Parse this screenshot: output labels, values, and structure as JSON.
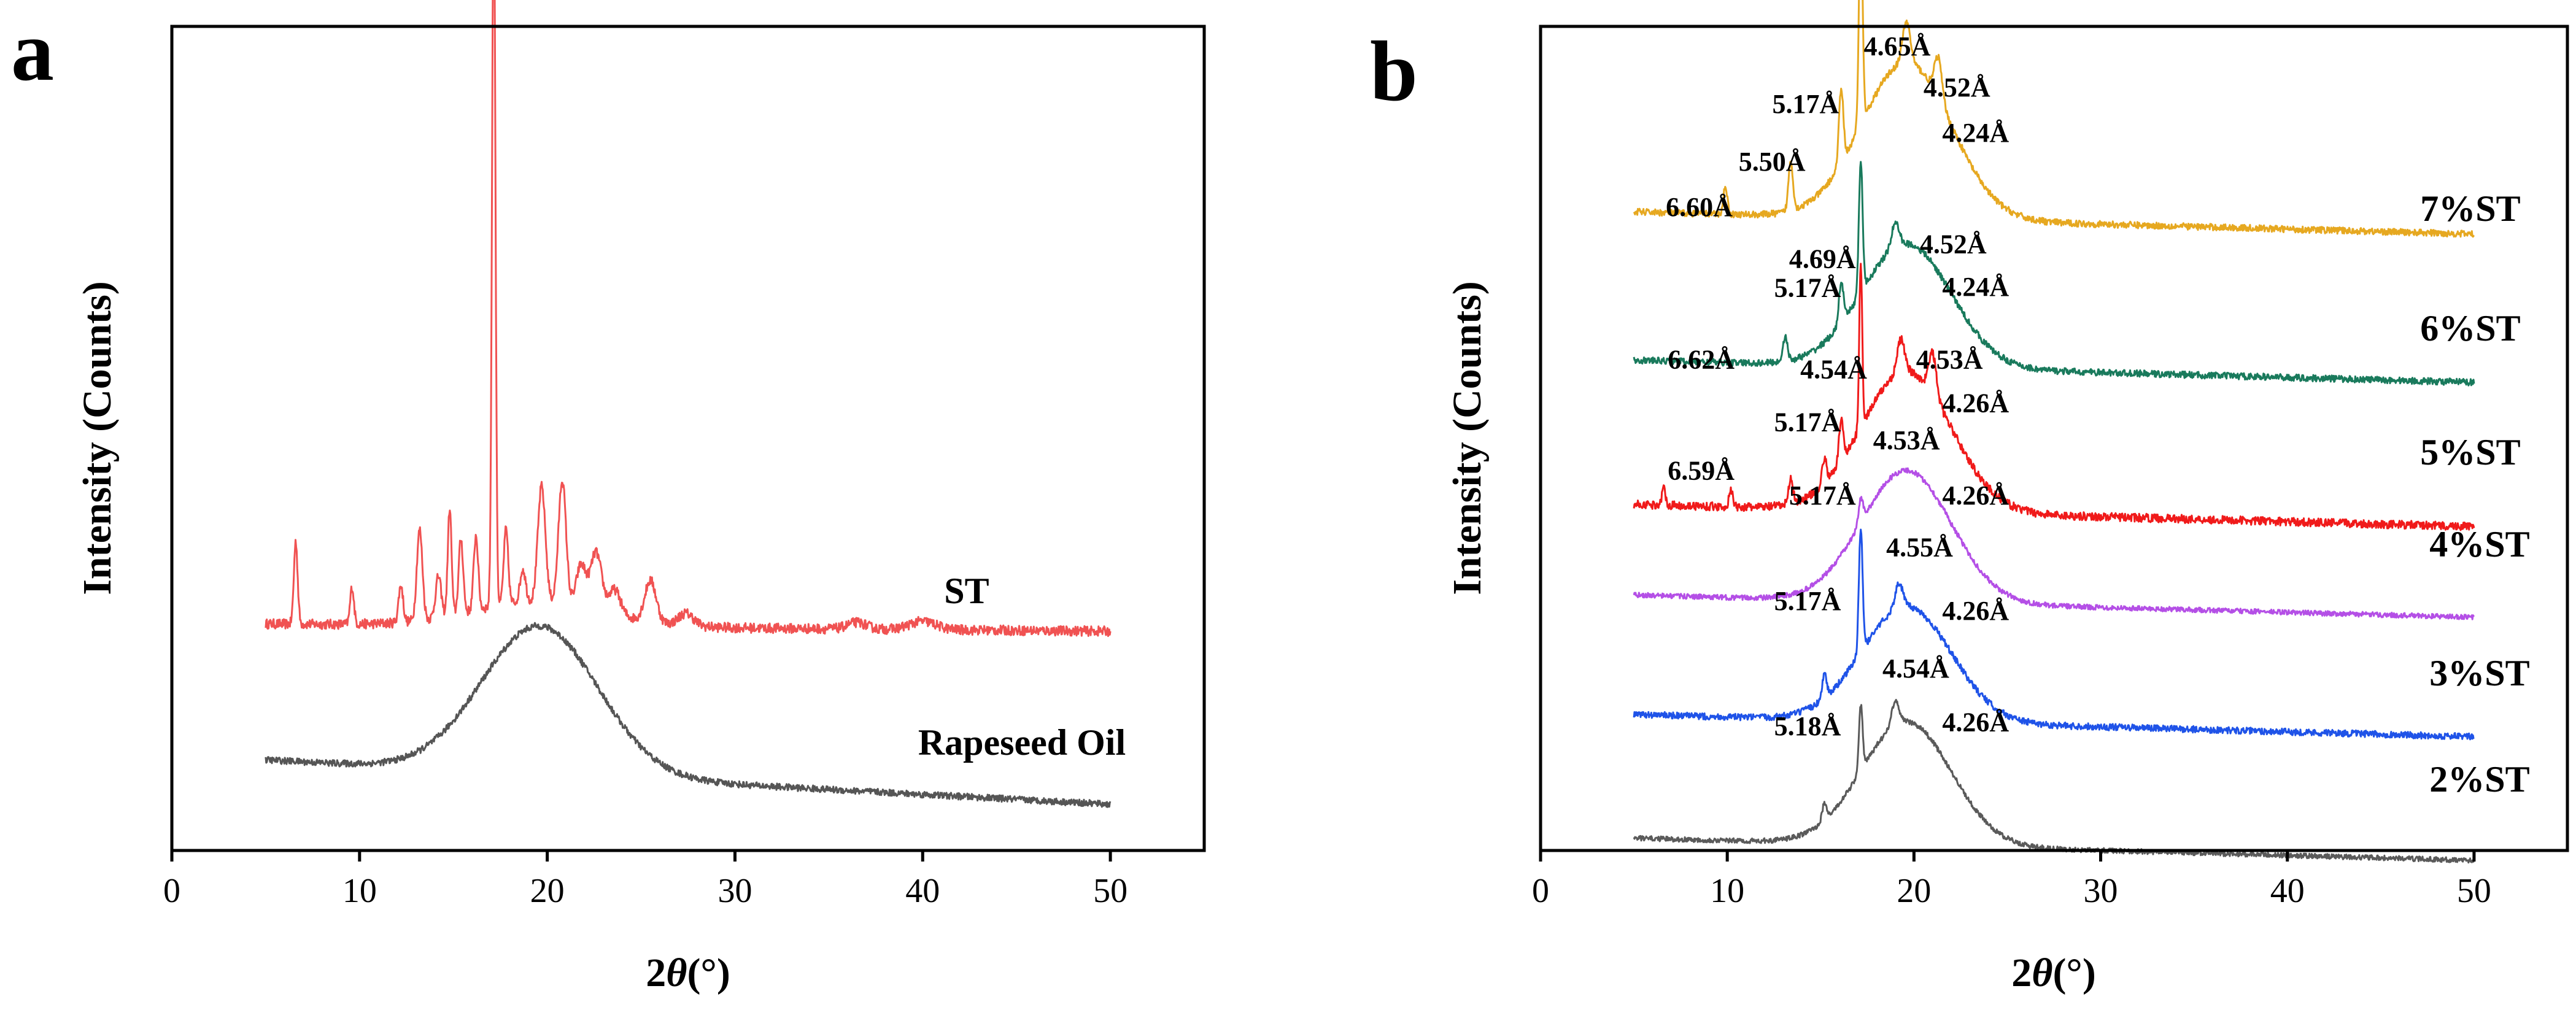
{
  "chart_data": [
    {
      "panel": "a",
      "type": "line",
      "xlabel": "2θ(°)",
      "xlabel_parts": [
        "2",
        "θ",
        "(°)"
      ],
      "ylabel": "Intensity (Counts)",
      "xlim": [
        0,
        55
      ],
      "xticks": [
        0,
        10,
        20,
        30,
        40,
        50
      ],
      "yticks_shown": false,
      "series": [
        {
          "name": "ST",
          "color": "#f05252",
          "offset": 0.27,
          "baseline": [
            0.005,
            -0.0002
          ],
          "noise": 0.006,
          "peaks": [
            [
              6.6,
              0.1,
              0.1
            ],
            [
              9.6,
              0.045,
              0.1
            ],
            [
              12.2,
              0.045,
              0.12
            ],
            [
              13.2,
              0.11,
              0.15
            ],
            [
              14.2,
              0.05,
              0.15
            ],
            [
              14.8,
              0.13,
              0.1
            ],
            [
              15.4,
              0.09,
              0.12
            ],
            [
              16.2,
              0.09,
              0.12
            ],
            [
              17.15,
              0.88,
              0.09
            ],
            [
              17.8,
              0.09,
              0.12
            ],
            [
              18.7,
              0.04,
              0.15
            ],
            [
              19.7,
              0.14,
              0.2
            ],
            [
              20.8,
              0.15,
              0.2
            ],
            [
              21.8,
              0.05,
              0.25
            ],
            [
              22.6,
              0.07,
              0.3
            ],
            [
              23.6,
              0.03,
              0.3
            ],
            [
              25.5,
              0.05,
              0.3
            ],
            [
              27.4,
              0.015,
              0.4
            ],
            [
              36.5,
              0.008,
              0.5
            ],
            [
              40,
              0.01,
              0.7
            ]
          ],
          "humps": [
            [
              19.5,
              0.03,
              3.5
            ]
          ]
        },
        {
          "name": "Rapeseed Oil",
          "color": "#555555",
          "offset": 0.065,
          "baseline": [
            0.045,
            -0.0012
          ],
          "noise": 0.004,
          "peaks": [],
          "humps": [
            [
              19.6,
              0.18,
              3.1
            ]
          ]
        }
      ]
    },
    {
      "panel": "b",
      "type": "line",
      "xlabel": "2θ(°)",
      "xlabel_parts": [
        "2",
        "θ",
        "(°)"
      ],
      "ylabel": "Intensity (Counts)",
      "xlim": [
        0,
        55
      ],
      "xticks": [
        0,
        10,
        20,
        30,
        40,
        50
      ],
      "yticks_shown": false,
      "series": [
        {
          "name": "7%ST",
          "color": "#e6a820",
          "offset": 0.745,
          "baseline": [
            0.03,
            -0.0006
          ],
          "noise": 0.004,
          "peaks": [
            [
              9.9,
              0.035,
              0.1
            ],
            [
              13.4,
              0.06,
              0.12
            ],
            [
              16.1,
              0.09,
              0.12
            ],
            [
              17.15,
              0.25,
              0.1
            ],
            [
              19.6,
              0.05,
              0.2
            ],
            [
              21.3,
              0.05,
              0.2
            ]
          ],
          "humps": [
            [
              19.6,
              0.19,
              2.4
            ]
          ],
          "annotations": [
            {
              "text": "4.65Å",
              "x": 19.1,
              "y": 0.965
            },
            {
              "text": "4.52Å",
              "x": 22.3,
              "y": 0.915
            },
            {
              "text": "5.17Å",
              "x": 14.2,
              "y": 0.895
            },
            {
              "text": "4.24Å",
              "x": 23.3,
              "y": 0.86
            },
            {
              "text": "5.50Å",
              "x": 12.4,
              "y": 0.825
            },
            {
              "text": "6.60Å",
              "x": 8.5,
              "y": 0.77
            }
          ]
        },
        {
          "name": "6%ST",
          "color": "#197a5c",
          "offset": 0.565,
          "baseline": [
            0.03,
            -0.0006
          ],
          "noise": 0.004,
          "peaks": [
            [
              13.1,
              0.03,
              0.12
            ],
            [
              16.1,
              0.05,
              0.12
            ],
            [
              17.15,
              0.16,
              0.1
            ],
            [
              19.0,
              0.03,
              0.2
            ]
          ],
          "humps": [
            [
              19.6,
              0.15,
              2.4
            ]
          ],
          "annotations": [
            {
              "text": "4.52Å",
              "x": 22.1,
              "y": 0.725
            },
            {
              "text": "4.69Å",
              "x": 15.1,
              "y": 0.707
            },
            {
              "text": "5.17Å",
              "x": 14.3,
              "y": 0.672
            },
            {
              "text": "4.24Å",
              "x": 23.3,
              "y": 0.673
            },
            {
              "text": "6.62Å",
              "x": 8.6,
              "y": 0.585
            }
          ]
        },
        {
          "name": "5%ST",
          "color": "#f01a1a",
          "offset": 0.39,
          "baseline": [
            0.03,
            -0.0006
          ],
          "noise": 0.005,
          "peaks": [
            [
              6.6,
              0.02,
              0.1
            ],
            [
              10.2,
              0.02,
              0.1
            ],
            [
              13.4,
              0.03,
              0.12
            ],
            [
              15.2,
              0.03,
              0.12
            ],
            [
              16.1,
              0.05,
              0.12
            ],
            [
              17.15,
              0.2,
              0.08
            ],
            [
              19.3,
              0.04,
              0.2
            ],
            [
              21.0,
              0.05,
              0.2
            ]
          ],
          "humps": [
            [
              19.6,
              0.17,
              2.4
            ]
          ],
          "annotations": [
            {
              "text": "4.53Å",
              "x": 21.9,
              "y": 0.585
            },
            {
              "text": "4.54Å",
              "x": 15.7,
              "y": 0.573
            },
            {
              "text": "5.17Å",
              "x": 14.3,
              "y": 0.509
            },
            {
              "text": "4.26Å",
              "x": 23.3,
              "y": 0.532
            },
            {
              "text": "6.59Å",
              "x": 8.6,
              "y": 0.45
            }
          ]
        },
        {
          "name": "4%ST",
          "color": "#b44fe6",
          "offset": 0.28,
          "baseline": [
            0.03,
            -0.0006
          ],
          "noise": 0.003,
          "peaks": [
            [
              17.15,
              0.03,
              0.12
            ]
          ],
          "humps": [
            [
              19.6,
              0.16,
              2.4
            ]
          ],
          "annotations": [
            {
              "text": "4.53Å",
              "x": 19.6,
              "y": 0.487
            },
            {
              "text": "5.17Å",
              "x": 15.1,
              "y": 0.42
            },
            {
              "text": "4.26Å",
              "x": 23.3,
              "y": 0.42
            }
          ]
        },
        {
          "name": "3%ST",
          "color": "#1f53e8",
          "offset": 0.135,
          "baseline": [
            0.03,
            -0.0006
          ],
          "noise": 0.004,
          "peaks": [
            [
              15.2,
              0.03,
              0.12
            ],
            [
              17.15,
              0.15,
              0.1
            ],
            [
              19.2,
              0.03,
              0.2
            ]
          ],
          "humps": [
            [
              19.6,
              0.14,
              2.4
            ]
          ],
          "annotations": [
            {
              "text": "4.55Å",
              "x": 20.3,
              "y": 0.357
            },
            {
              "text": "5.17Å",
              "x": 14.3,
              "y": 0.292
            },
            {
              "text": "4.26Å",
              "x": 23.3,
              "y": 0.28
            }
          ]
        },
        {
          "name": "2%ST",
          "color": "#5a5a5a",
          "offset": -0.015,
          "baseline": [
            0.03,
            -0.0006
          ],
          "noise": 0.003,
          "peaks": [
            [
              15.2,
              0.02,
              0.12
            ],
            [
              17.15,
              0.08,
              0.1
            ],
            [
              19.0,
              0.03,
              0.2
            ]
          ],
          "humps": [
            [
              19.6,
              0.15,
              2.4
            ]
          ],
          "annotations": [
            {
              "text": "4.54Å",
              "x": 20.1,
              "y": 0.21
            },
            {
              "text": "5.18Å",
              "x": 14.3,
              "y": 0.14
            },
            {
              "text": "4.26Å",
              "x": 23.3,
              "y": 0.145
            }
          ]
        }
      ]
    }
  ]
}
